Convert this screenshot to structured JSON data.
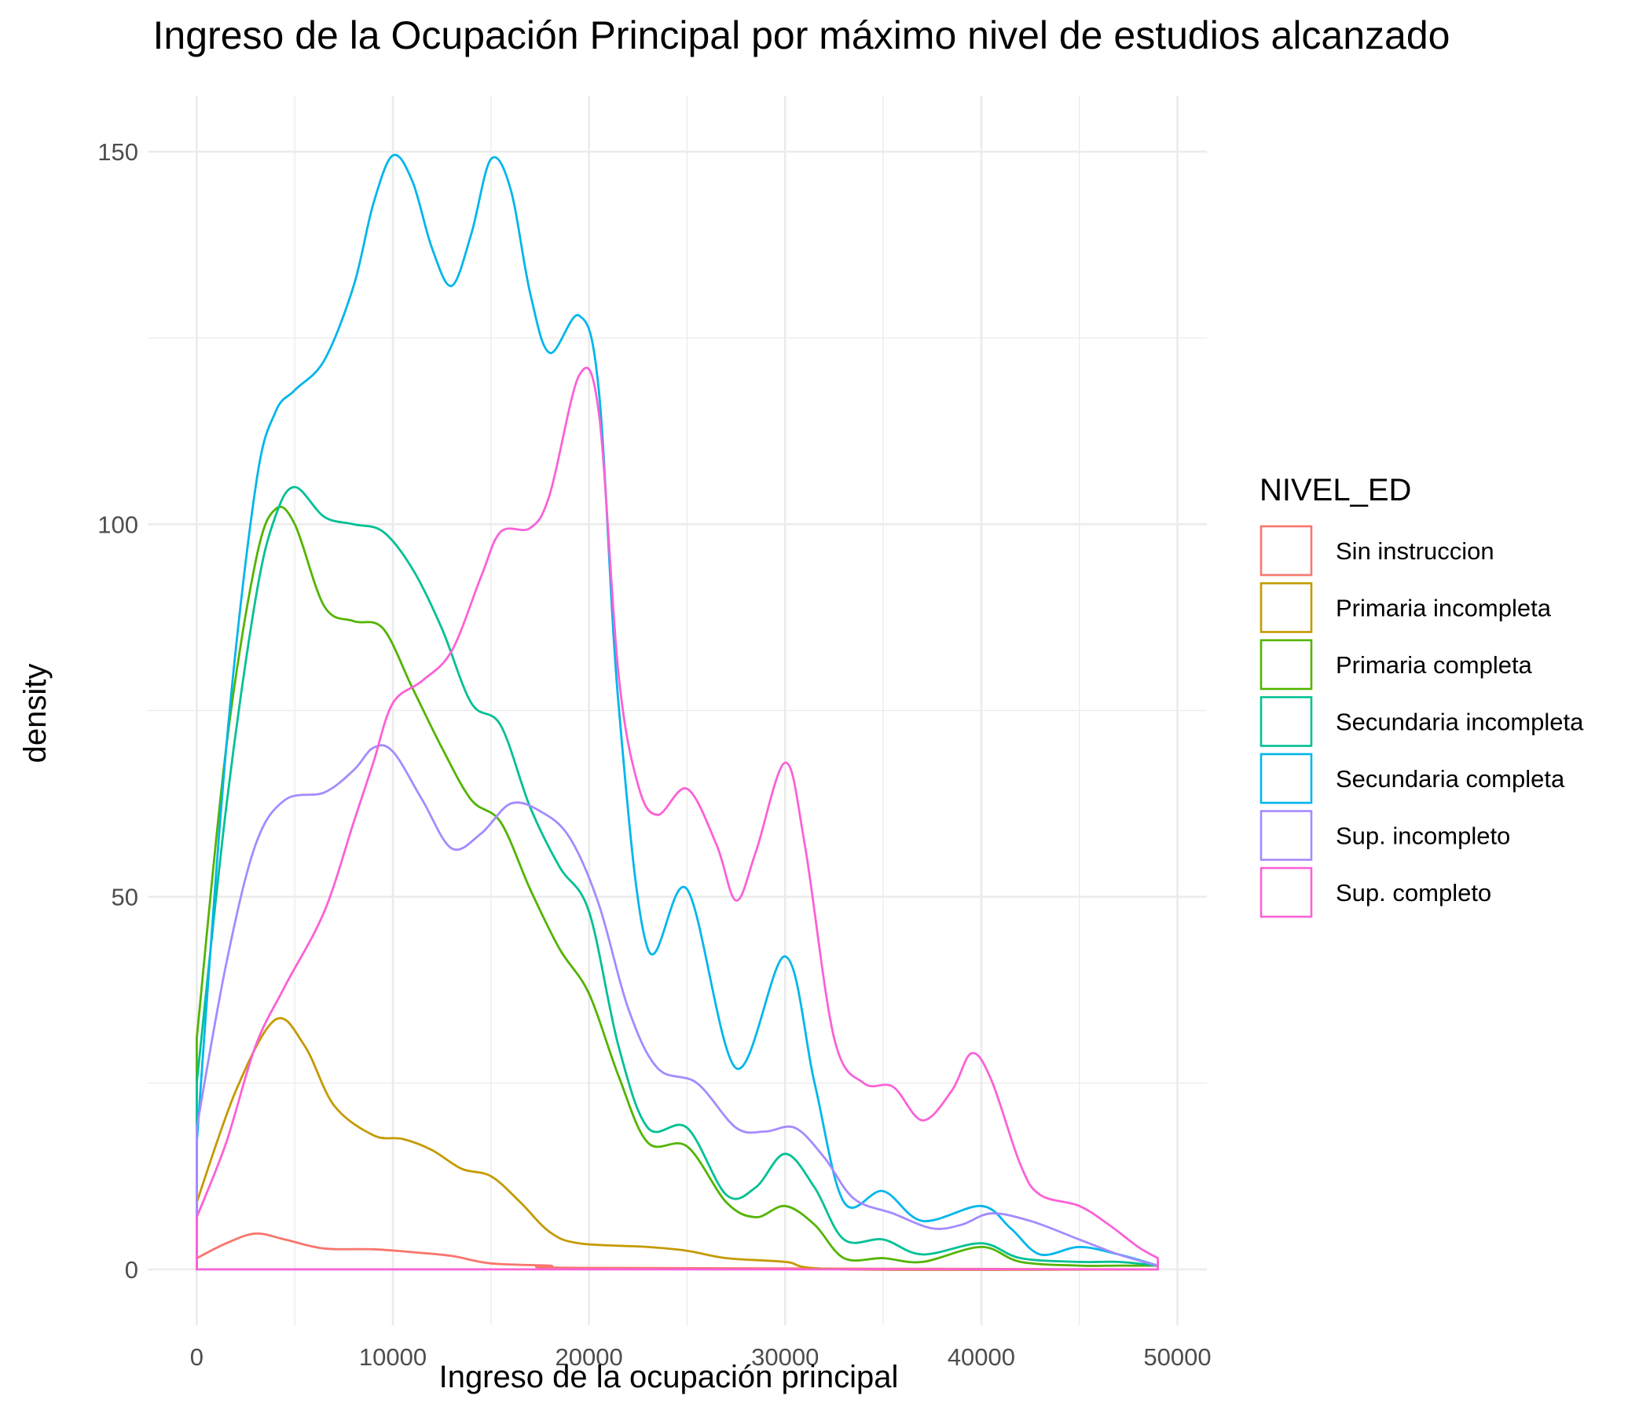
{
  "chart_data": {
    "type": "line",
    "title": "Ingreso de la Ocupación Principal por máximo nivel de estudios alcanzado",
    "xlabel": "Ingreso de la ocupación principal",
    "ylabel": "density",
    "xlim": [
      -2500,
      51500
    ],
    "ylim": [
      -7.5,
      157.5
    ],
    "x_ticks": [
      0,
      10000,
      20000,
      30000,
      40000,
      50000
    ],
    "x_tick_labels": [
      "0",
      "10000",
      "20000",
      "30000",
      "40000",
      "50000"
    ],
    "y_ticks": [
      0,
      50,
      100,
      150
    ],
    "y_tick_labels": [
      "0",
      "50",
      "100",
      "150"
    ],
    "grid": true,
    "legend_title": "NIVEL_ED",
    "legend_position": "right",
    "series": [
      {
        "name": "Sin instruccion",
        "color": "#F8766D",
        "points": [
          [
            0,
            1.5
          ],
          [
            1500,
            3.5
          ],
          [
            3000,
            4.8
          ],
          [
            4500,
            4.0
          ],
          [
            6500,
            2.8
          ],
          [
            9000,
            2.7
          ],
          [
            11000,
            2.3
          ],
          [
            13000,
            1.8
          ],
          [
            15000,
            0.8
          ],
          [
            18000,
            0.5
          ],
          [
            20000,
            0.2
          ],
          [
            49000,
            0
          ]
        ]
      },
      {
        "name": "Primaria incompleta",
        "color": "#C49A00",
        "points": [
          [
            0,
            9
          ],
          [
            2000,
            24
          ],
          [
            4000,
            33.5
          ],
          [
            5500,
            30
          ],
          [
            7000,
            22
          ],
          [
            9000,
            18
          ],
          [
            10500,
            17.5
          ],
          [
            12000,
            16
          ],
          [
            13500,
            13.5
          ],
          [
            15000,
            12.5
          ],
          [
            16500,
            9
          ],
          [
            18000,
            5
          ],
          [
            19500,
            3.5
          ],
          [
            23000,
            3
          ],
          [
            25000,
            2.5
          ],
          [
            27000,
            1.5
          ],
          [
            30000,
            1.0
          ],
          [
            33000,
            0
          ],
          [
            49000,
            0
          ]
        ]
      },
      {
        "name": "Primaria completa",
        "color": "#53B400",
        "points": [
          [
            0,
            31
          ],
          [
            1500,
            70
          ],
          [
            3000,
            95
          ],
          [
            4000,
            102
          ],
          [
            5000,
            100
          ],
          [
            6500,
            89
          ],
          [
            8000,
            87
          ],
          [
            9500,
            86
          ],
          [
            11000,
            78
          ],
          [
            12500,
            70
          ],
          [
            14000,
            63
          ],
          [
            15500,
            60
          ],
          [
            17000,
            51
          ],
          [
            18500,
            43
          ],
          [
            20000,
            37
          ],
          [
            21500,
            26
          ],
          [
            23000,
            17
          ],
          [
            25000,
            16.5
          ],
          [
            27000,
            9
          ],
          [
            28500,
            7
          ],
          [
            30000,
            8.5
          ],
          [
            31500,
            6
          ],
          [
            33000,
            1.5
          ],
          [
            35000,
            1.5
          ],
          [
            37000,
            1
          ],
          [
            40000,
            3
          ],
          [
            42000,
            1
          ],
          [
            45000,
            0.5
          ],
          [
            47000,
            0.5
          ],
          [
            49000,
            0.5
          ]
        ]
      },
      {
        "name": "Secundaria incompleta",
        "color": "#00C094",
        "points": [
          [
            0,
            25
          ],
          [
            1500,
            62
          ],
          [
            3000,
            90
          ],
          [
            4000,
            101
          ],
          [
            5000,
            105
          ],
          [
            6500,
            101
          ],
          [
            8000,
            100
          ],
          [
            9500,
            99
          ],
          [
            11000,
            94
          ],
          [
            12500,
            86
          ],
          [
            14000,
            76
          ],
          [
            15500,
            73
          ],
          [
            17000,
            62
          ],
          [
            18500,
            54
          ],
          [
            20000,
            48
          ],
          [
            21500,
            30
          ],
          [
            23000,
            19
          ],
          [
            25000,
            19
          ],
          [
            27000,
            10
          ],
          [
            28500,
            11
          ],
          [
            30000,
            15.5
          ],
          [
            31500,
            11
          ],
          [
            33000,
            4
          ],
          [
            35000,
            4
          ],
          [
            37000,
            2
          ],
          [
            40000,
            3.5
          ],
          [
            42000,
            1.5
          ],
          [
            45000,
            1
          ],
          [
            47000,
            1
          ],
          [
            49000,
            0.5
          ]
        ]
      },
      {
        "name": "Secundaria completa",
        "color": "#00B6EB",
        "points": [
          [
            0,
            17
          ],
          [
            1500,
            70
          ],
          [
            3000,
            105
          ],
          [
            4000,
            115
          ],
          [
            5000,
            118
          ],
          [
            6500,
            122
          ],
          [
            8000,
            132
          ],
          [
            9000,
            143
          ],
          [
            10000,
            149.5
          ],
          [
            11000,
            146
          ],
          [
            12000,
            137
          ],
          [
            13000,
            132
          ],
          [
            14000,
            139
          ],
          [
            15000,
            149
          ],
          [
            16000,
            145
          ],
          [
            17000,
            131
          ],
          [
            18000,
            123
          ],
          [
            19500,
            128
          ],
          [
            20500,
            118
          ],
          [
            21500,
            76
          ],
          [
            23000,
            43
          ],
          [
            25000,
            51
          ],
          [
            27500,
            27
          ],
          [
            30000,
            42
          ],
          [
            31500,
            25
          ],
          [
            33000,
            9
          ],
          [
            35000,
            10.5
          ],
          [
            37000,
            6.5
          ],
          [
            40000,
            8.5
          ],
          [
            41500,
            5.5
          ],
          [
            43000,
            2
          ],
          [
            45000,
            3
          ],
          [
            47000,
            2
          ],
          [
            49000,
            0.5
          ]
        ]
      },
      {
        "name": "Sup. incompleto",
        "color": "#A58AFF",
        "points": [
          [
            0,
            19
          ],
          [
            1500,
            41
          ],
          [
            3000,
            57
          ],
          [
            4500,
            63
          ],
          [
            6500,
            64
          ],
          [
            8000,
            67
          ],
          [
            9000,
            70
          ],
          [
            10000,
            69.5
          ],
          [
            11500,
            63
          ],
          [
            13000,
            56.5
          ],
          [
            14500,
            58.5
          ],
          [
            16000,
            62.5
          ],
          [
            17500,
            61.5
          ],
          [
            19000,
            58
          ],
          [
            20500,
            49
          ],
          [
            22000,
            35
          ],
          [
            23500,
            27
          ],
          [
            25500,
            25
          ],
          [
            27500,
            19
          ],
          [
            29000,
            18.5
          ],
          [
            30500,
            19
          ],
          [
            32000,
            15
          ],
          [
            33500,
            9.5
          ],
          [
            35500,
            7.5
          ],
          [
            37500,
            5.5
          ],
          [
            39000,
            6
          ],
          [
            40500,
            7.5
          ],
          [
            42500,
            6.5
          ],
          [
            45000,
            4
          ],
          [
            47000,
            2
          ],
          [
            49000,
            0.5
          ]
        ]
      },
      {
        "name": "Sup. completo",
        "color": "#FB61D7",
        "points": [
          [
            0,
            7
          ],
          [
            1500,
            17
          ],
          [
            3000,
            30
          ],
          [
            4500,
            38
          ],
          [
            6500,
            48
          ],
          [
            8000,
            60
          ],
          [
            9000,
            68
          ],
          [
            10000,
            76
          ],
          [
            11500,
            79
          ],
          [
            13000,
            83
          ],
          [
            14500,
            93
          ],
          [
            15500,
            99
          ],
          [
            17000,
            99.5
          ],
          [
            18000,
            104
          ],
          [
            19500,
            120
          ],
          [
            20500,
            115
          ],
          [
            21500,
            80
          ],
          [
            22500,
            65
          ],
          [
            23500,
            61
          ],
          [
            25000,
            64.5
          ],
          [
            26500,
            57
          ],
          [
            27500,
            49.5
          ],
          [
            28500,
            56
          ],
          [
            30000,
            68
          ],
          [
            31000,
            57
          ],
          [
            32500,
            31
          ],
          [
            34000,
            25
          ],
          [
            35500,
            24.5
          ],
          [
            37000,
            20
          ],
          [
            38500,
            24
          ],
          [
            39500,
            29
          ],
          [
            40500,
            25.5
          ],
          [
            42000,
            14
          ],
          [
            43000,
            10
          ],
          [
            45000,
            8.5
          ],
          [
            46500,
            6
          ],
          [
            48000,
            3
          ],
          [
            49000,
            1.5
          ]
        ]
      }
    ]
  }
}
